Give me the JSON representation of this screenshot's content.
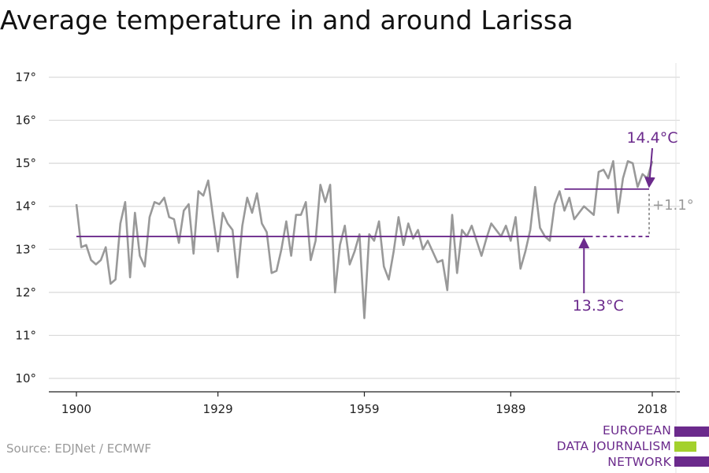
{
  "title": "Average temperature in and around Larissa",
  "source": "Source: EDJNet / ECMWF",
  "logo": {
    "line1": "EUROPEAN",
    "line2": "DATA JOURNALISM",
    "line3": "NETWORK"
  },
  "colors": {
    "series": "#999999",
    "accent": "#6b2a8c",
    "grid": "#d9d9d9",
    "logo_bar_purple": "#6b2a8c",
    "logo_bar_green": "#a3d12d"
  },
  "chart_data": {
    "type": "line",
    "title": "Average temperature in and around Larissa",
    "xlabel": "",
    "ylabel": "",
    "xlim": [
      1900,
      2018
    ],
    "ylim": [
      10,
      17
    ],
    "grid": true,
    "x_ticks": [
      1900,
      1929,
      1959,
      1989,
      2018
    ],
    "x_tick_labels": [
      "1900",
      "1929",
      "1959",
      "1989",
      "2018"
    ],
    "y_ticks": [
      10,
      11,
      12,
      13,
      14,
      15,
      16,
      17
    ],
    "y_tick_labels": [
      "10°",
      "11°",
      "12°",
      "13°",
      "14°",
      "15°",
      "16°",
      "17°"
    ],
    "series": [
      {
        "x_start": 1900,
        "x_step": 1,
        "values": [
          14.05,
          13.05,
          13.1,
          12.75,
          12.65,
          12.75,
          13.05,
          12.2,
          12.3,
          13.6,
          14.1,
          12.35,
          13.85,
          12.85,
          12.6,
          13.75,
          14.1,
          14.05,
          14.2,
          13.75,
          13.7,
          13.15,
          13.9,
          14.05,
          12.9,
          14.35,
          14.25,
          14.6,
          13.75,
          12.95,
          13.85,
          13.6,
          13.45,
          12.35,
          13.55,
          14.2,
          13.85,
          14.3,
          13.6,
          13.4,
          12.45,
          12.5,
          13.0,
          13.65,
          12.85,
          13.8,
          13.8,
          14.1,
          12.75,
          13.2,
          14.5,
          14.1,
          14.5,
          12.0,
          13.1,
          13.55,
          12.65,
          12.95,
          13.35,
          11.4,
          13.35,
          13.2,
          13.65,
          12.6,
          12.3,
          12.95,
          13.75,
          13.1,
          13.6,
          13.25,
          13.45,
          13.0,
          13.2,
          12.95,
          12.7,
          12.75,
          12.05,
          13.8,
          12.45,
          13.45,
          13.3,
          13.55,
          13.2,
          12.85,
          13.25,
          13.6,
          13.45,
          13.3,
          13.55,
          13.2,
          13.75,
          12.55,
          12.95,
          13.45,
          14.45,
          13.5,
          13.3,
          13.2,
          14.05,
          14.35,
          13.9,
          14.2,
          13.7,
          13.85,
          14.0,
          13.9,
          13.8,
          14.8,
          14.85,
          14.65,
          15.05,
          13.85,
          14.65,
          15.05,
          15.0,
          14.45,
          14.75,
          14.65,
          15.05
        ]
      }
    ],
    "annotations": {
      "baseline": {
        "value": 13.3,
        "label": "13.3°C",
        "x_from": 1900,
        "x_to": 2018
      },
      "recent": {
        "value": 14.4,
        "label": "14.4°C",
        "x_from": 2000,
        "x_to": 2018
      },
      "difference": {
        "label": "+1.1°"
      }
    }
  }
}
